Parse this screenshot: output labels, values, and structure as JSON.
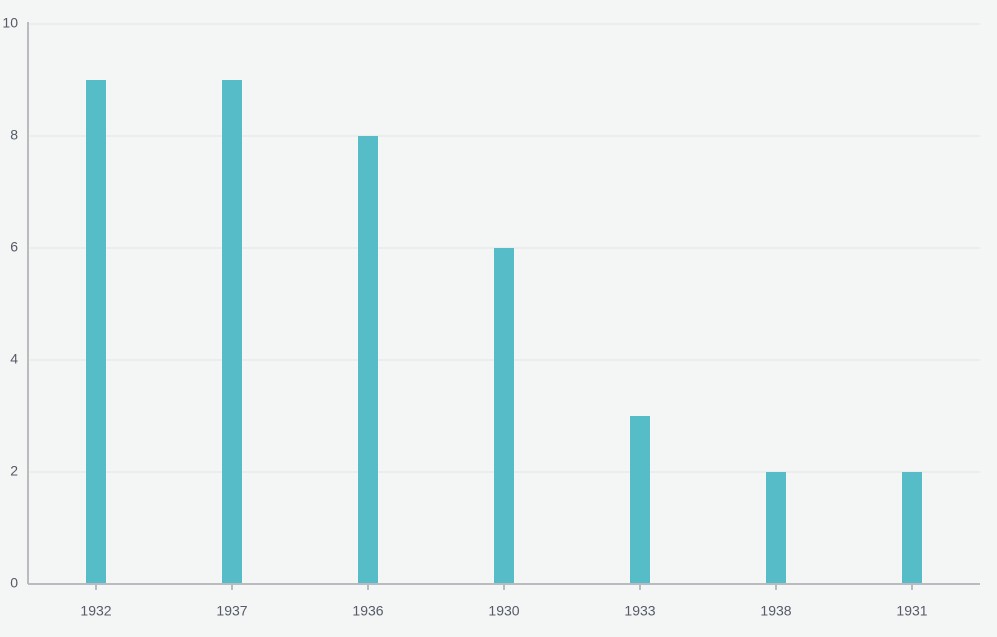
{
  "chart_data": {
    "type": "bar",
    "categories": [
      "1932",
      "1937",
      "1936",
      "1930",
      "1933",
      "1938",
      "1931"
    ],
    "values": [
      9,
      9,
      8,
      6,
      3,
      2,
      2
    ],
    "color": "#56bcc8",
    "ylim": [
      0,
      10
    ],
    "yticks": [
      0,
      2,
      4,
      6,
      8,
      10
    ],
    "grid": true
  }
}
